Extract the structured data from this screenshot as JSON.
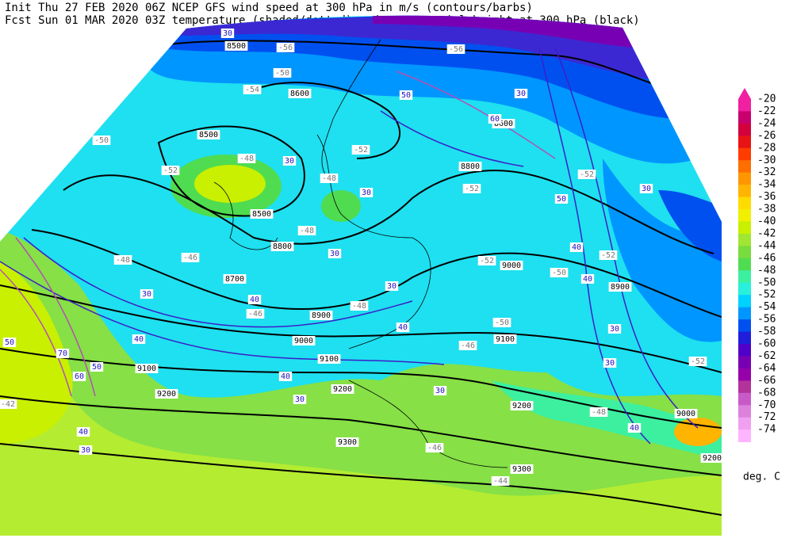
{
  "header": {
    "line1": "Init  Thu 27 FEB 2020 06Z  NCEP GFS wind speed at 300 hPa in m/s (contours/barbs)",
    "line2": "Fcst Sun 01 MAR 2020 03Z  temperature (shaded/dotted) and geopotential height at 300 hPa (black)"
  },
  "colorbar": {
    "levels": [
      -20,
      -22,
      -24,
      -26,
      -28,
      -30,
      -32,
      -34,
      -36,
      -38,
      -40,
      -42,
      -44,
      -46,
      -48,
      -50,
      -52,
      -54,
      -56,
      -58,
      -60,
      -62,
      -64,
      -66,
      -68,
      -70,
      -72,
      -74
    ],
    "colors": [
      "#f020a0",
      "#c8006e",
      "#d2003c",
      "#e81414",
      "#ff3c00",
      "#ff6e00",
      "#ff9600",
      "#ffb400",
      "#ffdc00",
      "#f0f000",
      "#c8f000",
      "#a0e632",
      "#78dc3c",
      "#50dc50",
      "#3cf0a0",
      "#28f0dc",
      "#00d2ff",
      "#0096ff",
      "#0050f0",
      "#1e1edc",
      "#5000c8",
      "#7800b4",
      "#9600aa",
      "#b4329b",
      "#c85ac8",
      "#dc82dc",
      "#f0a0f0",
      "#ffb4ff"
    ],
    "unit": "deg. C"
  },
  "map": {
    "height_labels": [
      "8500",
      "8600",
      "8500",
      "8500",
      "8600",
      "8800",
      "8700",
      "8800",
      "8900",
      "9000",
      "9000",
      "8900",
      "9100",
      "9100",
      "9100",
      "9200",
      "9200",
      "9200",
      "9300",
      "9300",
      "9000",
      "9200"
    ],
    "temperature_labels": [
      "-56",
      "-54",
      "-50",
      "-50",
      "-52",
      "-48",
      "-52",
      "-48",
      "-48",
      "-48",
      "-46",
      "-52",
      "-52",
      "-52",
      "-50",
      "-46",
      "-48",
      "-50",
      "-46",
      "-52",
      "-48",
      "-46",
      "-44",
      "-42",
      "-56",
      "-52"
    ],
    "wind_labels": [
      "30",
      "50",
      "60",
      "30",
      "30",
      "30",
      "50",
      "30",
      "40",
      "40",
      "30",
      "30",
      "30",
      "40",
      "40",
      "40",
      "30",
      "50",
      "70",
      "60",
      "50",
      "40",
      "30",
      "30",
      "40",
      "40",
      "30",
      "30"
    ]
  }
}
